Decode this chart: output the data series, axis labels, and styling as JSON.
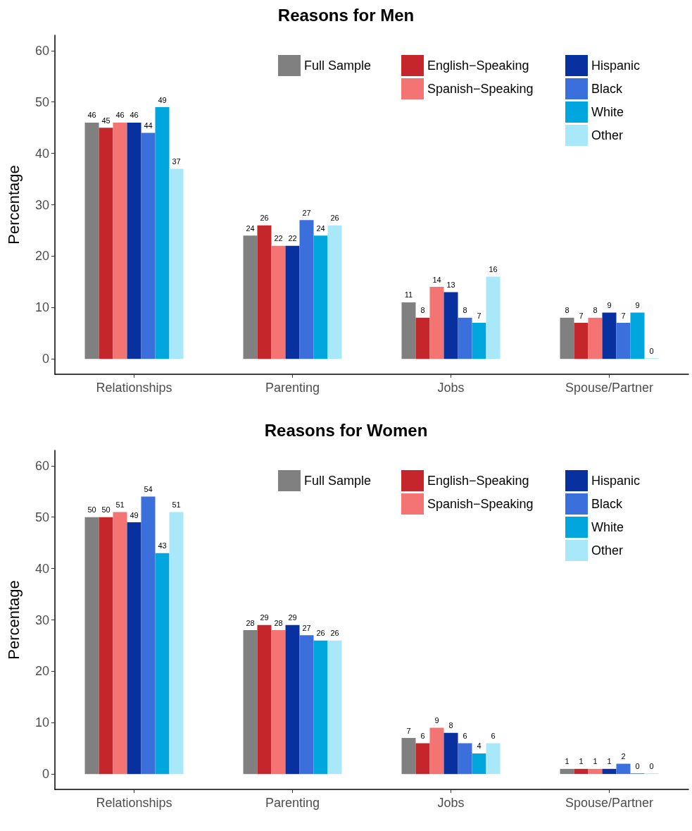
{
  "chart_data": [
    {
      "type": "bar",
      "title": "Reasons for Men",
      "ylabel": "Percentage",
      "categories": [
        "Relationships",
        "Parenting",
        "Jobs",
        "Spouse/Partner"
      ],
      "ylim": [
        -3,
        63
      ],
      "yticks": [
        0,
        10,
        20,
        30,
        40,
        50,
        60
      ],
      "grid": false,
      "legend": "top right",
      "data_labels": true,
      "series": [
        {
          "name": "Full Sample",
          "color": "#808080",
          "values": [
            46,
            24,
            11,
            8
          ]
        },
        {
          "name": "English−Speaking",
          "color": "#c4262b",
          "values": [
            45,
            26,
            8,
            7
          ]
        },
        {
          "name": "Spanish−Speaking",
          "color": "#f47373",
          "values": [
            46,
            22,
            14,
            8
          ]
        },
        {
          "name": "Hispanic",
          "color": "#08309e",
          "values": [
            46,
            22,
            13,
            9
          ]
        },
        {
          "name": "Black",
          "color": "#3b6fdc",
          "values": [
            44,
            27,
            8,
            7
          ]
        },
        {
          "name": "White",
          "color": "#00a6dd",
          "values": [
            49,
            24,
            7,
            9
          ]
        },
        {
          "name": "Other",
          "color": "#a8e8f8",
          "values": [
            37,
            26,
            16,
            0
          ]
        }
      ]
    },
    {
      "type": "bar",
      "title": "Reasons for Women",
      "ylabel": "Percentage",
      "categories": [
        "Relationships",
        "Parenting",
        "Jobs",
        "Spouse/Partner"
      ],
      "ylim": [
        -3,
        63
      ],
      "yticks": [
        0,
        10,
        20,
        30,
        40,
        50,
        60
      ],
      "grid": false,
      "legend": "top right",
      "data_labels": true,
      "series": [
        {
          "name": "Full Sample",
          "color": "#808080",
          "values": [
            50,
            28,
            7,
            1
          ]
        },
        {
          "name": "English−Speaking",
          "color": "#c4262b",
          "values": [
            50,
            29,
            6,
            1
          ]
        },
        {
          "name": "Spanish−Speaking",
          "color": "#f47373",
          "values": [
            51,
            28,
            9,
            1
          ]
        },
        {
          "name": "Hispanic",
          "color": "#08309e",
          "values": [
            49,
            29,
            8,
            1
          ]
        },
        {
          "name": "Black",
          "color": "#3b6fdc",
          "values": [
            54,
            27,
            6,
            2
          ]
        },
        {
          "name": "White",
          "color": "#00a6dd",
          "values": [
            43,
            26,
            4,
            0
          ]
        },
        {
          "name": "Other",
          "color": "#a8e8f8",
          "values": [
            51,
            26,
            6,
            0
          ]
        }
      ]
    }
  ]
}
